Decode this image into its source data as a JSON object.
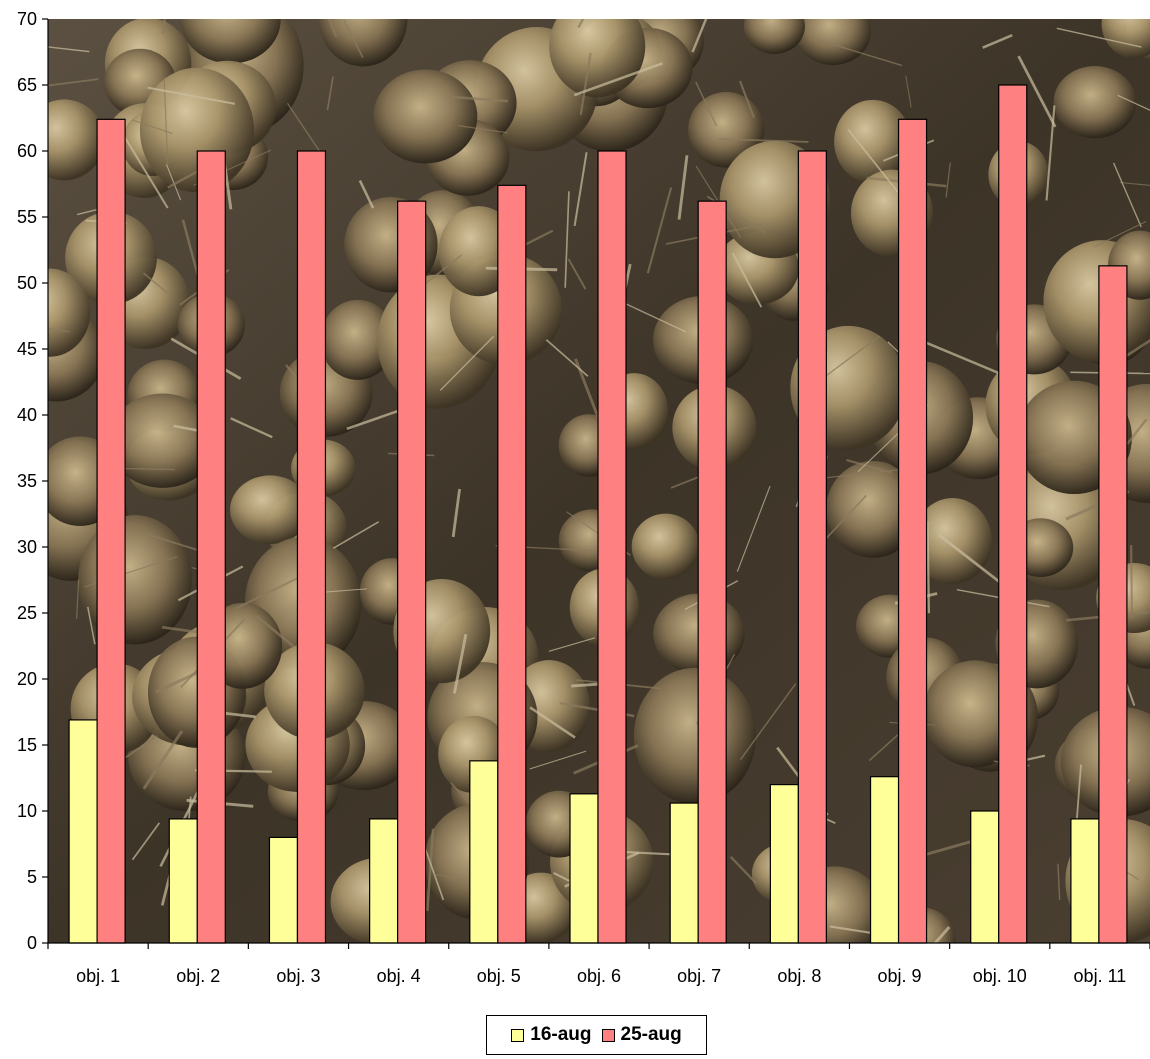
{
  "chart_data": {
    "type": "bar",
    "title": "",
    "xlabel": "",
    "ylabel": "",
    "ylim": [
      0,
      70
    ],
    "yticks": [
      0,
      5,
      10,
      15,
      20,
      25,
      30,
      35,
      40,
      45,
      50,
      55,
      60,
      65,
      70
    ],
    "categories": [
      "obj. 1",
      "obj. 2",
      "obj. 3",
      "obj. 4",
      "obj. 5",
      "obj. 6",
      "obj. 7",
      "obj. 8",
      "obj. 9",
      "obj. 10",
      "obj. 11"
    ],
    "series": [
      {
        "name": "16-aug",
        "color": "#FFFF99",
        "values": [
          16.9,
          9.4,
          8.0,
          9.4,
          13.8,
          11.3,
          10.6,
          12.0,
          12.6,
          10.0,
          9.4
        ]
      },
      {
        "name": "25-aug",
        "color": "#FF8080",
        "values": [
          62.4,
          60.0,
          60.0,
          56.2,
          57.4,
          60.0,
          56.2,
          60.0,
          62.4,
          65.0,
          51.3
        ]
      }
    ],
    "legend_position": "bottom-center",
    "background": "photograph of harvested onions in a field",
    "grid": false
  }
}
